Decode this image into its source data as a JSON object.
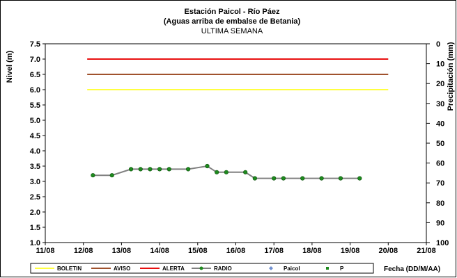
{
  "chart_data": {
    "type": "line",
    "title": "Estación Paicol  - Río Páez",
    "subtitle": "(Aguas arriba de embalse de Betania)",
    "subtitle2": "ULTIMA SEMANA",
    "ylabel": "Nivel (m)",
    "y2label": "Precipitación (mm)",
    "xlabel": "Fecha (DD/M/AA)",
    "ylim": [
      1.0,
      7.5
    ],
    "y2lim": [
      0,
      100
    ],
    "y2_inverted": true,
    "x_ticks": [
      "11/08",
      "12/08",
      "13/08",
      "14/08",
      "15/08",
      "16/08",
      "17/08",
      "18/08",
      "19/08",
      "20/08",
      "21/08"
    ],
    "y_ticks": [
      "1.0",
      "1.5",
      "2.0",
      "2.5",
      "3.0",
      "3.5",
      "4.0",
      "4.5",
      "5.0",
      "5.5",
      "6.0",
      "6.5",
      "7.0",
      "7.5"
    ],
    "y2_ticks": [
      "0",
      "10",
      "20",
      "30",
      "40",
      "50",
      "60",
      "70",
      "80",
      "90",
      "100"
    ],
    "grid": false,
    "legend_position": "bottom",
    "series": [
      {
        "name": "BOLETIN",
        "color": "#FFFF40",
        "marker": "none",
        "x": [
          12.1,
          20.0
        ],
        "y": [
          6.0,
          6.0
        ]
      },
      {
        "name": "AVISO",
        "color": "#A0522D",
        "marker": "none",
        "x": [
          12.1,
          20.0
        ],
        "y": [
          6.5,
          6.5
        ]
      },
      {
        "name": "ALERTA",
        "color": "#E81010",
        "marker": "none",
        "x": [
          12.1,
          20.0
        ],
        "y": [
          7.0,
          7.0
        ]
      },
      {
        "name": "RADIO",
        "color": "#808080",
        "marker": "circle",
        "marker_color": "#1E8A1E",
        "x": [
          12.25,
          12.75,
          13.25,
          13.5,
          13.75,
          14.0,
          14.25,
          14.75,
          15.25,
          15.5,
          15.75,
          16.25,
          16.5,
          17.0,
          17.25,
          17.75,
          18.25,
          18.75,
          19.25
        ],
        "y": [
          3.2,
          3.2,
          3.4,
          3.4,
          3.4,
          3.4,
          3.4,
          3.4,
          3.5,
          3.3,
          3.3,
          3.3,
          3.1,
          3.1,
          3.1,
          3.1,
          3.1,
          3.1,
          3.1
        ]
      },
      {
        "name": "Paicol",
        "color": "#7090D0",
        "marker": "diamond",
        "x": [],
        "y": []
      },
      {
        "name": "P",
        "color": "#1E8A1E",
        "marker": "square",
        "x": [],
        "y": []
      }
    ]
  }
}
